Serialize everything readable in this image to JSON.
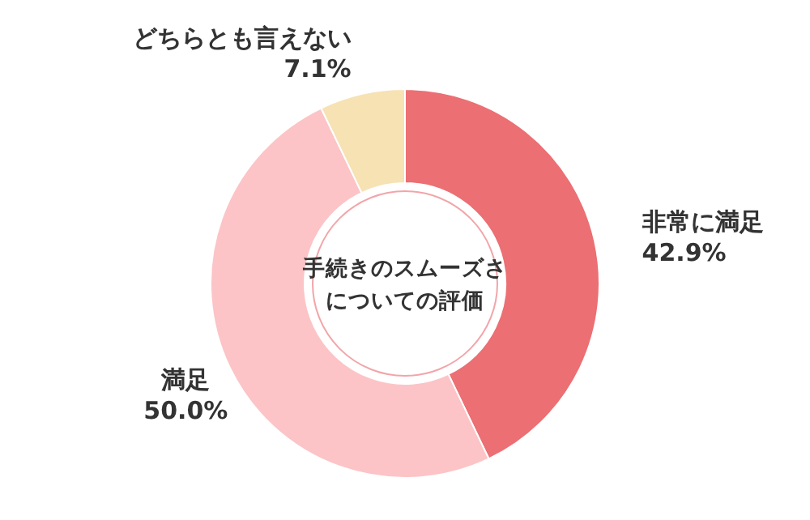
{
  "chart_data": {
    "type": "donut",
    "title": "手続きのスムーズさについての評価",
    "categories": [
      "非常に満足",
      "満足",
      "どちらとも言えない"
    ],
    "values": [
      42.9,
      50.0,
      7.1
    ],
    "value_labels": [
      "42.9%",
      "50.0%",
      "7.1%"
    ],
    "colors": [
      "#eb6f73",
      "#fcc4c6",
      "#f6e2b3"
    ]
  }
}
